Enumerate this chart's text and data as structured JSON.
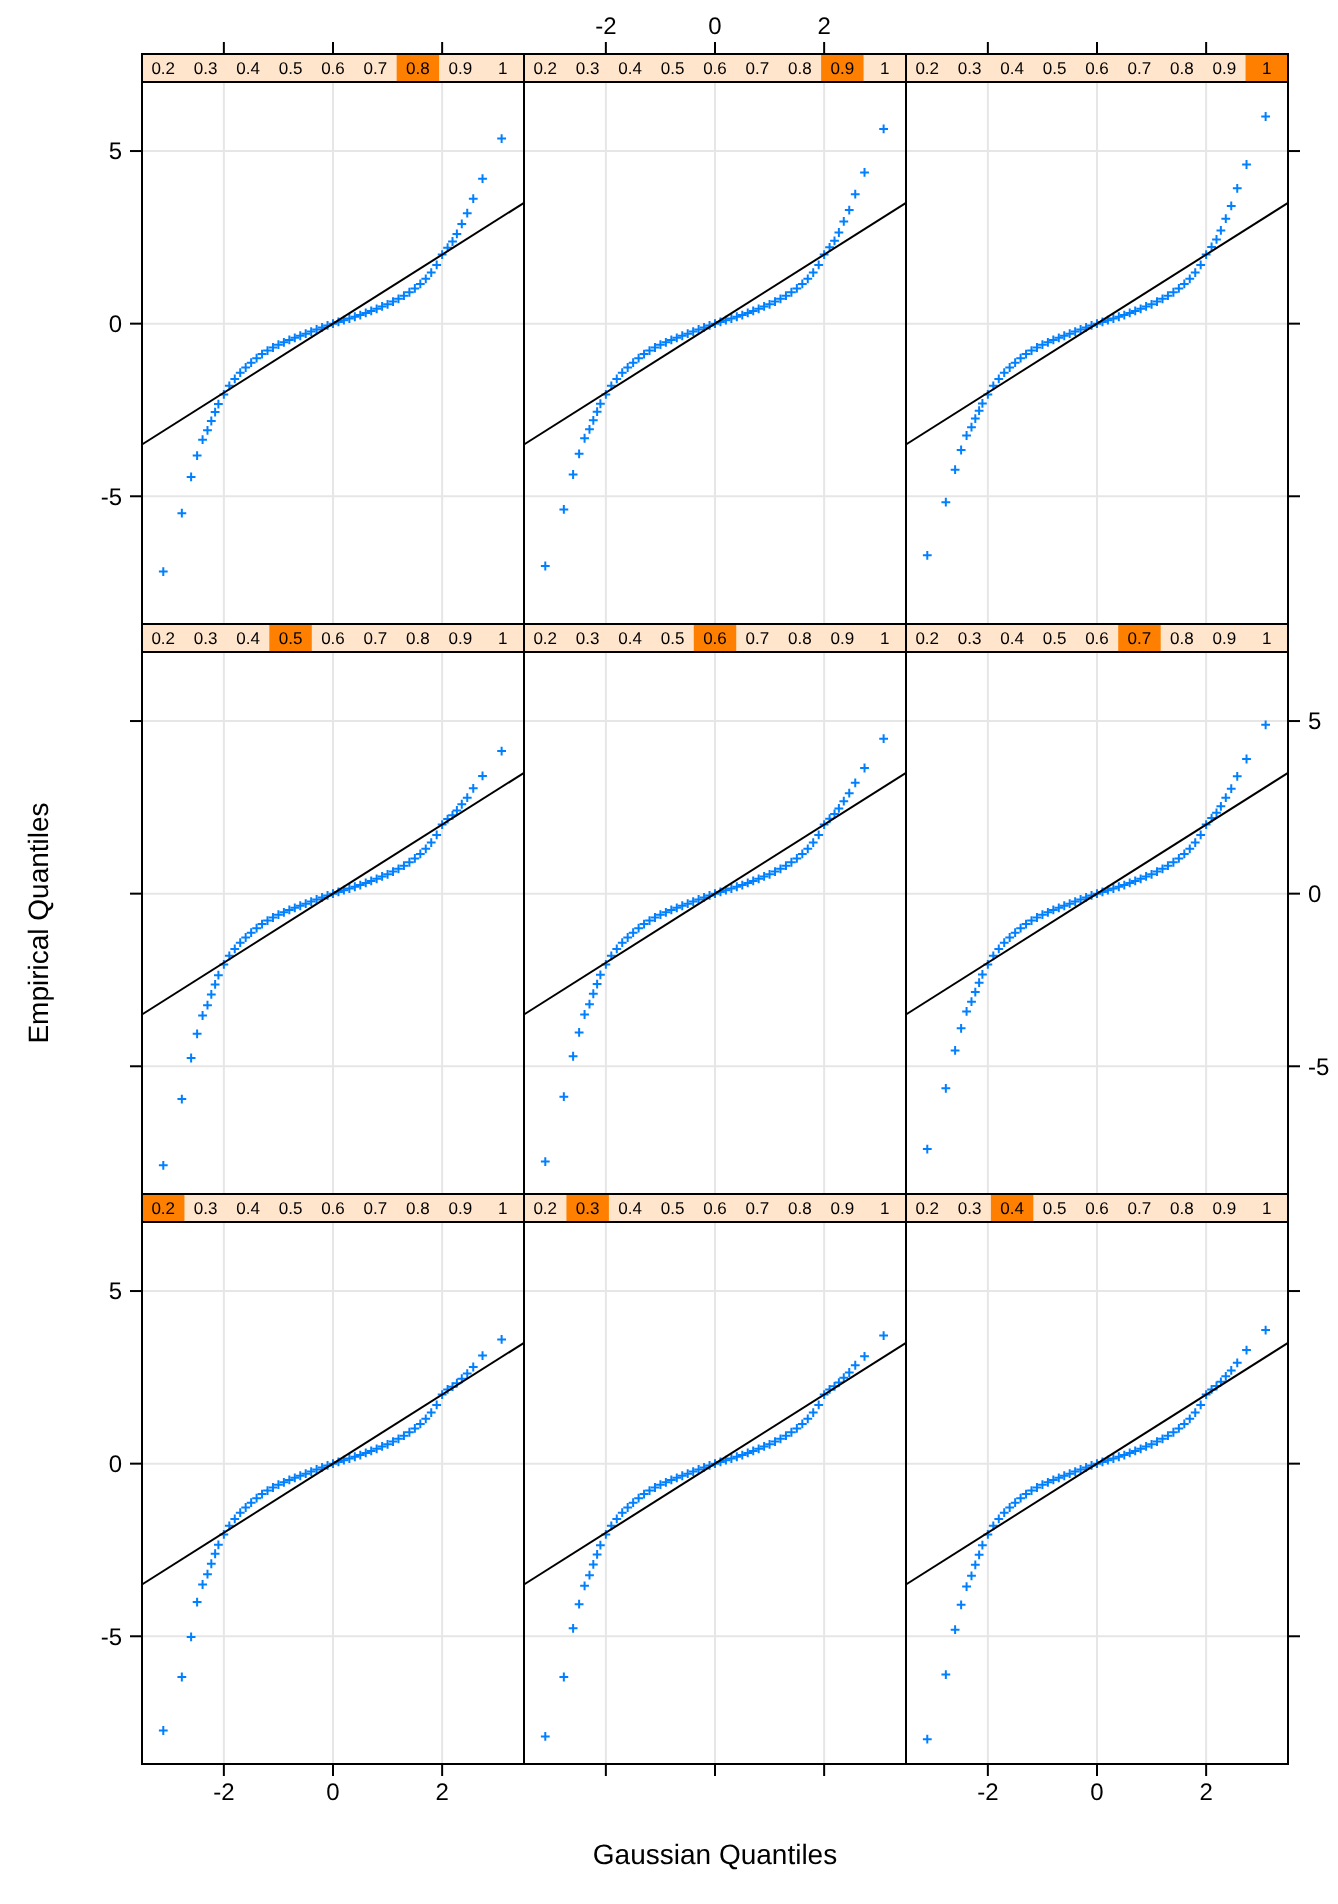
{
  "chart_data": [
    {
      "type": "scatter",
      "annotations": [
        "0.2",
        "0.3",
        "0.4",
        "0.5",
        "0.6",
        "0.7",
        "0.8",
        "0.9",
        "1"
      ],
      "x": [
        -3.11,
        -2.77,
        -2.6,
        -2.49,
        -2.39,
        -2.3,
        -2.23,
        -2.16,
        -2.1,
        -2.0,
        -1.9,
        -1.8,
        -1.7,
        -1.6,
        -1.5,
        -1.4,
        -1.3,
        -1.2,
        -1.1,
        -1.0,
        -0.9,
        -0.8,
        -0.7,
        -0.6,
        -0.5,
        -0.4,
        -0.3,
        -0.2,
        -0.1,
        0,
        0.1,
        0.2,
        0.3,
        0.4,
        0.5,
        0.6,
        0.7,
        0.8,
        0.9,
        1.0,
        1.1,
        1.2,
        1.3,
        1.4,
        1.5,
        1.6,
        1.7,
        1.8,
        1.9,
        2.0,
        2.1,
        2.19,
        2.27,
        2.36,
        2.46,
        2.57,
        2.74,
        3.09
      ],
      "series": [
        {
          "marker": "cross",
          "color": "#0080ff",
          "values": [
            -7.18,
            -5.49,
            -4.44,
            -3.82,
            -3.36,
            -3.09,
            -2.82,
            -2.56,
            -2.33,
            -2.05,
            -1.8,
            -1.6,
            -1.42,
            -1.27,
            -1.13,
            -1.0,
            -0.88,
            -0.78,
            -0.69,
            -0.61,
            -0.54,
            -0.47,
            -0.41,
            -0.35,
            -0.29,
            -0.23,
            -0.17,
            -0.11,
            -0.05,
            0,
            0.05,
            0.1,
            0.15,
            0.2,
            0.25,
            0.31,
            0.37,
            0.43,
            0.5,
            0.56,
            0.64,
            0.72,
            0.81,
            0.91,
            1.02,
            1.15,
            1.3,
            1.48,
            1.7,
            2.0,
            2.2,
            2.38,
            2.6,
            2.89,
            3.2,
            3.62,
            4.2,
            5.36
          ]
        },
        {
          "type": "line",
          "marker": "none",
          "color": "#000000",
          "x": [
            -3.5,
            0,
            3.5
          ],
          "values": [
            -3.5,
            0,
            3.5
          ]
        }
      ],
      "xlim": [
        -3.5,
        3.5
      ],
      "ylim": [
        -8.7,
        7.0
      ],
      "xticks": [
        -2,
        0,
        2
      ],
      "yticks": [
        -5,
        0,
        5
      ],
      "grid": true,
      "tick_labels": "y"
    },
    {
      "type": "scatter",
      "annotations": [
        "0.2",
        "0.3",
        "0.4",
        "0.5",
        "0.6",
        "0.7",
        "0.8",
        "0.9",
        "1"
      ],
      "x": [
        -3.11,
        -2.77,
        -2.6,
        -2.49,
        -2.39,
        -2.3,
        -2.23,
        -2.16,
        -2.1,
        -2.0,
        -1.9,
        -1.8,
        -1.7,
        -1.6,
        -1.5,
        -1.4,
        -1.3,
        -1.2,
        -1.1,
        -1.0,
        -0.9,
        -0.8,
        -0.7,
        -0.6,
        -0.5,
        -0.4,
        -0.3,
        -0.2,
        -0.1,
        0,
        0.1,
        0.2,
        0.3,
        0.4,
        0.5,
        0.6,
        0.7,
        0.8,
        0.9,
        1.0,
        1.1,
        1.2,
        1.3,
        1.4,
        1.5,
        1.6,
        1.7,
        1.8,
        1.9,
        2.0,
        2.1,
        2.19,
        2.27,
        2.36,
        2.46,
        2.57,
        2.74,
        3.09
      ],
      "series": [
        {
          "marker": "cross",
          "color": "#0080ff",
          "values": [
            -7.02,
            -5.38,
            -4.37,
            -3.77,
            -3.32,
            -3.06,
            -2.8,
            -2.55,
            -2.32,
            -2.05,
            -1.8,
            -1.6,
            -1.42,
            -1.27,
            -1.13,
            -1.0,
            -0.88,
            -0.78,
            -0.69,
            -0.61,
            -0.54,
            -0.47,
            -0.41,
            -0.35,
            -0.29,
            -0.23,
            -0.17,
            -0.11,
            -0.05,
            0,
            0.05,
            0.1,
            0.15,
            0.2,
            0.25,
            0.31,
            0.37,
            0.43,
            0.5,
            0.56,
            0.64,
            0.72,
            0.81,
            0.91,
            1.02,
            1.15,
            1.3,
            1.48,
            1.7,
            2.0,
            2.21,
            2.4,
            2.64,
            2.96,
            3.29,
            3.75,
            4.38,
            5.64
          ]
        },
        {
          "type": "line",
          "marker": "none",
          "color": "#000000",
          "x": [
            -3.5,
            0,
            3.5
          ],
          "values": [
            -3.5,
            0,
            3.5
          ]
        }
      ],
      "xlim": [
        -3.5,
        3.5
      ],
      "ylim": [
        -8.7,
        7.0
      ],
      "xticks": [
        -2,
        0,
        2
      ],
      "yticks": [
        -5,
        0,
        5
      ],
      "grid": true,
      "tick_labels": "x"
    },
    {
      "type": "scatter",
      "annotations": [
        "0.2",
        "0.3",
        "0.4",
        "0.5",
        "0.6",
        "0.7",
        "0.8",
        "0.9",
        "1"
      ],
      "x": [
        -3.11,
        -2.77,
        -2.6,
        -2.49,
        -2.39,
        -2.3,
        -2.23,
        -2.16,
        -2.1,
        -2.0,
        -1.9,
        -1.8,
        -1.7,
        -1.6,
        -1.5,
        -1.4,
        -1.3,
        -1.2,
        -1.1,
        -1.0,
        -0.9,
        -0.8,
        -0.7,
        -0.6,
        -0.5,
        -0.4,
        -0.3,
        -0.2,
        -0.1,
        0,
        0.1,
        0.2,
        0.3,
        0.4,
        0.5,
        0.6,
        0.7,
        0.8,
        0.9,
        1.0,
        1.1,
        1.2,
        1.3,
        1.4,
        1.5,
        1.6,
        1.7,
        1.8,
        1.9,
        2.0,
        2.1,
        2.19,
        2.27,
        2.36,
        2.46,
        2.57,
        2.74,
        3.09
      ],
      "series": [
        {
          "marker": "cross",
          "color": "#0080ff",
          "values": [
            -6.71,
            -5.17,
            -4.23,
            -3.66,
            -3.24,
            -3.0,
            -2.75,
            -2.52,
            -2.31,
            -2.05,
            -1.8,
            -1.6,
            -1.42,
            -1.27,
            -1.13,
            -1.0,
            -0.88,
            -0.78,
            -0.69,
            -0.61,
            -0.54,
            -0.47,
            -0.41,
            -0.35,
            -0.29,
            -0.23,
            -0.17,
            -0.11,
            -0.05,
            0,
            0.05,
            0.1,
            0.15,
            0.2,
            0.25,
            0.31,
            0.37,
            0.43,
            0.5,
            0.56,
            0.64,
            0.72,
            0.81,
            0.91,
            1.02,
            1.15,
            1.3,
            1.48,
            1.7,
            2.0,
            2.22,
            2.44,
            2.7,
            3.04,
            3.41,
            3.92,
            4.61,
            6.0
          ]
        },
        {
          "type": "line",
          "marker": "none",
          "color": "#000000",
          "x": [
            -3.5,
            0,
            3.5
          ],
          "values": [
            -3.5,
            0,
            3.5
          ]
        }
      ],
      "xlim": [
        -3.5,
        3.5
      ],
      "ylim": [
        -8.7,
        7.0
      ],
      "xticks": [
        -2,
        0,
        2
      ],
      "yticks": [
        -5,
        0,
        5
      ],
      "grid": true,
      "tick_labels": false
    },
    {
      "type": "scatter",
      "ylabel": "Empirical Quantiles",
      "annotations": [
        "0.2",
        "0.3",
        "0.4",
        "0.5",
        "0.6",
        "0.7",
        "0.8",
        "0.9",
        "1"
      ],
      "x": [
        -3.11,
        -2.77,
        -2.6,
        -2.49,
        -2.39,
        -2.3,
        -2.23,
        -2.16,
        -2.1,
        -2.0,
        -1.9,
        -1.8,
        -1.7,
        -1.6,
        -1.5,
        -1.4,
        -1.3,
        -1.2,
        -1.1,
        -1.0,
        -0.9,
        -0.8,
        -0.7,
        -0.6,
        -0.5,
        -0.4,
        -0.3,
        -0.2,
        -0.1,
        0,
        0.1,
        0.2,
        0.3,
        0.4,
        0.5,
        0.6,
        0.7,
        0.8,
        0.9,
        1.0,
        1.1,
        1.2,
        1.3,
        1.4,
        1.5,
        1.6,
        1.7,
        1.8,
        1.9,
        2.0,
        2.1,
        2.19,
        2.27,
        2.36,
        2.46,
        2.57,
        2.74,
        3.09
      ],
      "series": [
        {
          "marker": "cross",
          "color": "#0080ff",
          "values": [
            -7.87,
            -5.95,
            -4.76,
            -4.06,
            -3.53,
            -3.23,
            -2.92,
            -2.63,
            -2.36,
            -2.05,
            -1.8,
            -1.6,
            -1.42,
            -1.27,
            -1.13,
            -1.0,
            -0.88,
            -0.78,
            -0.69,
            -0.61,
            -0.54,
            -0.47,
            -0.41,
            -0.35,
            -0.29,
            -0.23,
            -0.17,
            -0.11,
            -0.05,
            0,
            0.05,
            0.1,
            0.15,
            0.2,
            0.25,
            0.31,
            0.37,
            0.43,
            0.5,
            0.56,
            0.64,
            0.72,
            0.81,
            0.91,
            1.02,
            1.15,
            1.3,
            1.48,
            1.7,
            2.0,
            2.16,
            2.27,
            2.41,
            2.59,
            2.78,
            3.05,
            3.41,
            4.13
          ]
        },
        {
          "type": "line",
          "marker": "none",
          "color": "#000000",
          "x": [
            -3.5,
            0,
            3.5
          ],
          "values": [
            -3.5,
            0,
            3.5
          ]
        }
      ],
      "xlim": [
        -3.5,
        3.5
      ],
      "ylim": [
        -8.7,
        7.0
      ],
      "xticks": [
        -2,
        0,
        2
      ],
      "yticks": [
        -5,
        0,
        5
      ],
      "grid": true,
      "tick_labels": false
    },
    {
      "type": "scatter",
      "annotations": [
        "0.2",
        "0.3",
        "0.4",
        "0.5",
        "0.6",
        "0.7",
        "0.8",
        "0.9",
        "1"
      ],
      "x": [
        -3.11,
        -2.77,
        -2.6,
        -2.49,
        -2.39,
        -2.3,
        -2.23,
        -2.16,
        -2.1,
        -2.0,
        -1.9,
        -1.8,
        -1.7,
        -1.6,
        -1.5,
        -1.4,
        -1.3,
        -1.2,
        -1.1,
        -1.0,
        -0.9,
        -0.8,
        -0.7,
        -0.6,
        -0.5,
        -0.4,
        -0.3,
        -0.2,
        -0.1,
        0,
        0.1,
        0.2,
        0.3,
        0.4,
        0.5,
        0.6,
        0.7,
        0.8,
        0.9,
        1.0,
        1.1,
        1.2,
        1.3,
        1.4,
        1.5,
        1.6,
        1.7,
        1.8,
        1.9,
        2.0,
        2.1,
        2.19,
        2.27,
        2.36,
        2.46,
        2.57,
        2.74,
        3.09
      ],
      "series": [
        {
          "marker": "cross",
          "color": "#0080ff",
          "values": [
            -7.76,
            -5.88,
            -4.71,
            -4.02,
            -3.5,
            -3.2,
            -2.9,
            -2.62,
            -2.35,
            -2.05,
            -1.8,
            -1.6,
            -1.42,
            -1.27,
            -1.13,
            -1.0,
            -0.88,
            -0.78,
            -0.69,
            -0.61,
            -0.54,
            -0.47,
            -0.41,
            -0.35,
            -0.29,
            -0.23,
            -0.17,
            -0.11,
            -0.05,
            0,
            0.05,
            0.1,
            0.15,
            0.2,
            0.25,
            0.31,
            0.37,
            0.43,
            0.5,
            0.56,
            0.64,
            0.72,
            0.81,
            0.91,
            1.02,
            1.15,
            1.3,
            1.48,
            1.7,
            2.0,
            2.17,
            2.31,
            2.47,
            2.68,
            2.91,
            3.21,
            3.64,
            4.49
          ]
        },
        {
          "type": "line",
          "marker": "none",
          "color": "#000000",
          "x": [
            -3.5,
            0,
            3.5
          ],
          "values": [
            -3.5,
            0,
            3.5
          ]
        }
      ],
      "xlim": [
        -3.5,
        3.5
      ],
      "ylim": [
        -8.7,
        7.0
      ],
      "xticks": [
        -2,
        0,
        2
      ],
      "yticks": [
        -5,
        0,
        5
      ],
      "grid": true,
      "tick_labels": false
    },
    {
      "type": "scatter",
      "annotations": [
        "0.2",
        "0.3",
        "0.4",
        "0.5",
        "0.6",
        "0.7",
        "0.8",
        "0.9",
        "1"
      ],
      "x": [
        -3.11,
        -2.77,
        -2.6,
        -2.49,
        -2.39,
        -2.3,
        -2.23,
        -2.16,
        -2.1,
        -2.0,
        -1.9,
        -1.8,
        -1.7,
        -1.6,
        -1.5,
        -1.4,
        -1.3,
        -1.2,
        -1.1,
        -1.0,
        -0.9,
        -0.8,
        -0.7,
        -0.6,
        -0.5,
        -0.4,
        -0.3,
        -0.2,
        -0.1,
        0,
        0.1,
        0.2,
        0.3,
        0.4,
        0.5,
        0.6,
        0.7,
        0.8,
        0.9,
        1.0,
        1.1,
        1.2,
        1.3,
        1.4,
        1.5,
        1.6,
        1.7,
        1.8,
        1.9,
        2.0,
        2.1,
        2.19,
        2.27,
        2.36,
        2.46,
        2.57,
        2.74,
        3.09
      ],
      "series": [
        {
          "marker": "cross",
          "color": "#0080ff",
          "values": [
            -7.4,
            -5.64,
            -4.54,
            -3.9,
            -3.41,
            -3.13,
            -2.85,
            -2.58,
            -2.34,
            -2.05,
            -1.8,
            -1.6,
            -1.42,
            -1.27,
            -1.13,
            -1.0,
            -0.88,
            -0.78,
            -0.69,
            -0.61,
            -0.54,
            -0.47,
            -0.41,
            -0.35,
            -0.29,
            -0.23,
            -0.17,
            -0.11,
            -0.05,
            0,
            0.05,
            0.1,
            0.15,
            0.2,
            0.25,
            0.31,
            0.37,
            0.43,
            0.5,
            0.56,
            0.64,
            0.72,
            0.81,
            0.91,
            1.02,
            1.15,
            1.3,
            1.48,
            1.7,
            2.0,
            2.19,
            2.34,
            2.53,
            2.78,
            3.04,
            3.4,
            3.9,
            4.89
          ]
        },
        {
          "type": "line",
          "marker": "none",
          "color": "#000000",
          "x": [
            -3.5,
            0,
            3.5
          ],
          "values": [
            -3.5,
            0,
            3.5
          ]
        }
      ],
      "xlim": [
        -3.5,
        3.5
      ],
      "ylim": [
        -8.7,
        7.0
      ],
      "xticks": [
        -2,
        0,
        2
      ],
      "yticks": [
        -5,
        0,
        5
      ],
      "grid": true,
      "tick_labels": "y"
    },
    {
      "type": "scatter",
      "annotations": [
        "0.2",
        "0.3",
        "0.4",
        "0.5",
        "0.6",
        "0.7",
        "0.8",
        "0.9",
        "1"
      ],
      "x": [
        -3.11,
        -2.77,
        -2.6,
        -2.49,
        -2.39,
        -2.3,
        -2.23,
        -2.16,
        -2.1,
        -2.0,
        -1.9,
        -1.8,
        -1.7,
        -1.6,
        -1.5,
        -1.4,
        -1.3,
        -1.2,
        -1.1,
        -1.0,
        -0.9,
        -0.8,
        -0.7,
        -0.6,
        -0.5,
        -0.4,
        -0.3,
        -0.2,
        -0.1,
        0,
        0.1,
        0.2,
        0.3,
        0.4,
        0.5,
        0.6,
        0.7,
        0.8,
        0.9,
        1.0,
        1.1,
        1.2,
        1.3,
        1.4,
        1.5,
        1.6,
        1.7,
        1.8,
        1.9,
        2.0,
        2.1,
        2.19,
        2.27,
        2.36,
        2.46,
        2.57,
        2.74,
        3.09
      ],
      "series": [
        {
          "marker": "cross",
          "color": "#0080ff",
          "values": [
            -7.73,
            -6.18,
            -5.02,
            -4.01,
            -3.5,
            -3.2,
            -2.9,
            -2.61,
            -2.35,
            -2.05,
            -1.8,
            -1.6,
            -1.42,
            -1.27,
            -1.13,
            -1.0,
            -0.88,
            -0.78,
            -0.69,
            -0.61,
            -0.54,
            -0.47,
            -0.41,
            -0.35,
            -0.29,
            -0.23,
            -0.17,
            -0.11,
            -0.05,
            0,
            0.05,
            0.1,
            0.15,
            0.2,
            0.25,
            0.31,
            0.37,
            0.43,
            0.5,
            0.56,
            0.64,
            0.72,
            0.81,
            0.91,
            1.02,
            1.15,
            1.3,
            1.48,
            1.7,
            2.0,
            2.15,
            2.23,
            2.33,
            2.46,
            2.61,
            2.8,
            3.13,
            3.6
          ]
        },
        {
          "type": "line",
          "marker": "none",
          "color": "#000000",
          "x": [
            -3.5,
            0,
            3.5
          ],
          "values": [
            -3.5,
            0,
            3.5
          ]
        }
      ],
      "xlim": [
        -3.5,
        3.5
      ],
      "ylim": [
        -8.7,
        7.0
      ],
      "xticks": [
        -2,
        0,
        2
      ],
      "yticks": [
        -5,
        0,
        5
      ],
      "grid": true
    },
    {
      "type": "scatter",
      "xlabel": "Gaussian Quantiles",
      "annotations": [
        "0.2",
        "0.3",
        "0.4",
        "0.5",
        "0.6",
        "0.7",
        "0.8",
        "0.9",
        "1"
      ],
      "x": [
        -3.11,
        -2.77,
        -2.6,
        -2.49,
        -2.39,
        -2.3,
        -2.23,
        -2.16,
        -2.1,
        -2.0,
        -1.9,
        -1.8,
        -1.7,
        -1.6,
        -1.5,
        -1.4,
        -1.3,
        -1.2,
        -1.1,
        -1.0,
        -0.9,
        -0.8,
        -0.7,
        -0.6,
        -0.5,
        -0.4,
        -0.3,
        -0.2,
        -0.1,
        0,
        0.1,
        0.2,
        0.3,
        0.4,
        0.5,
        0.6,
        0.7,
        0.8,
        0.9,
        1.0,
        1.1,
        1.2,
        1.3,
        1.4,
        1.5,
        1.6,
        1.7,
        1.8,
        1.9,
        2.0,
        2.1,
        2.19,
        2.27,
        2.36,
        2.46,
        2.57,
        2.74,
        3.09
      ],
      "series": [
        {
          "marker": "cross",
          "color": "#0080ff",
          "values": [
            -7.9,
            -6.18,
            -4.77,
            -4.07,
            -3.54,
            -3.23,
            -2.92,
            -2.63,
            -2.36,
            -2.05,
            -1.8,
            -1.6,
            -1.42,
            -1.27,
            -1.13,
            -1.0,
            -0.88,
            -0.78,
            -0.69,
            -0.61,
            -0.54,
            -0.47,
            -0.41,
            -0.35,
            -0.29,
            -0.23,
            -0.17,
            -0.11,
            -0.05,
            0,
            0.05,
            0.1,
            0.15,
            0.2,
            0.25,
            0.31,
            0.37,
            0.43,
            0.5,
            0.56,
            0.64,
            0.72,
            0.81,
            0.91,
            1.02,
            1.15,
            1.3,
            1.48,
            1.7,
            2.0,
            2.15,
            2.24,
            2.35,
            2.49,
            2.64,
            2.85,
            3.11,
            3.71
          ]
        },
        {
          "type": "line",
          "marker": "none",
          "color": "#000000",
          "x": [
            -3.5,
            0,
            3.5
          ],
          "values": [
            -3.5,
            0,
            3.5
          ]
        }
      ],
      "xlim": [
        -3.5,
        3.5
      ],
      "ylim": [
        -8.7,
        7.0
      ],
      "xticks": [
        -2,
        0,
        2
      ],
      "yticks": [
        -5,
        0,
        5
      ],
      "grid": true,
      "tick_labels": false
    },
    {
      "type": "scatter",
      "annotations": [
        "0.2",
        "0.3",
        "0.4",
        "0.5",
        "0.6",
        "0.7",
        "0.8",
        "0.9",
        "1"
      ],
      "x": [
        -3.11,
        -2.77,
        -2.6,
        -2.49,
        -2.39,
        -2.3,
        -2.23,
        -2.16,
        -2.1,
        -2.0,
        -1.9,
        -1.8,
        -1.7,
        -1.6,
        -1.5,
        -1.4,
        -1.3,
        -1.2,
        -1.1,
        -1.0,
        -0.9,
        -0.8,
        -0.7,
        -0.6,
        -0.5,
        -0.4,
        -0.3,
        -0.2,
        -0.1,
        0,
        0.1,
        0.2,
        0.3,
        0.4,
        0.5,
        0.6,
        0.7,
        0.8,
        0.9,
        1.0,
        1.1,
        1.2,
        1.3,
        1.4,
        1.5,
        1.6,
        1.7,
        1.8,
        1.9,
        2.0,
        2.1,
        2.19,
        2.27,
        2.36,
        2.46,
        2.57,
        2.74,
        3.09
      ],
      "series": [
        {
          "marker": "cross",
          "color": "#0080ff",
          "values": [
            -7.98,
            -6.11,
            -4.81,
            -4.09,
            -3.56,
            -3.25,
            -2.93,
            -2.64,
            -2.36,
            -2.05,
            -1.8,
            -1.6,
            -1.42,
            -1.27,
            -1.13,
            -1.0,
            -0.88,
            -0.78,
            -0.69,
            -0.61,
            -0.54,
            -0.47,
            -0.41,
            -0.35,
            -0.29,
            -0.23,
            -0.17,
            -0.11,
            -0.05,
            0,
            0.05,
            0.1,
            0.15,
            0.2,
            0.25,
            0.31,
            0.37,
            0.43,
            0.5,
            0.56,
            0.64,
            0.72,
            0.81,
            0.91,
            1.02,
            1.15,
            1.3,
            1.48,
            1.7,
            2.0,
            2.15,
            2.25,
            2.37,
            2.53,
            2.7,
            2.92,
            3.29,
            3.87
          ]
        },
        {
          "type": "line",
          "marker": "none",
          "color": "#000000",
          "x": [
            -3.5,
            0,
            3.5
          ],
          "values": [
            -3.5,
            0,
            3.5
          ]
        }
      ],
      "xlim": [
        -3.5,
        3.5
      ],
      "ylim": [
        -8.7,
        7.0
      ],
      "xticks": [
        -2,
        0,
        2
      ],
      "yticks": [
        -5,
        0,
        5
      ],
      "grid": true,
      "tick_labels": "x"
    }
  ]
}
